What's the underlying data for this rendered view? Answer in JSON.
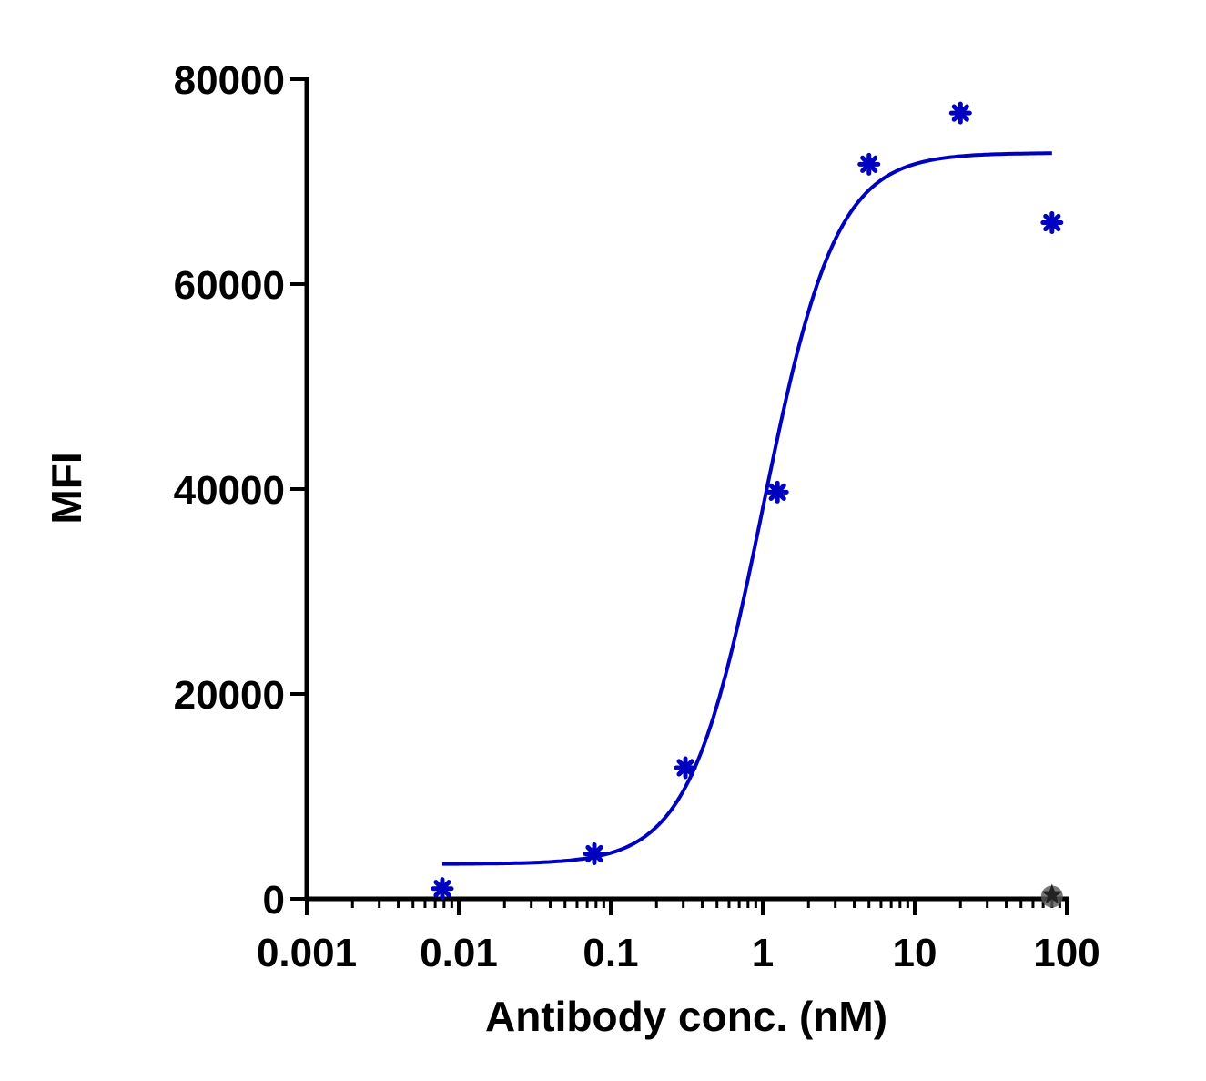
{
  "chart_data": {
    "type": "scatter",
    "title": "",
    "xlabel": "Antibody conc. (nM)",
    "ylabel": "MFI",
    "x_scale": "log",
    "xlim": [
      0.001,
      100
    ],
    "ylim": [
      0,
      80000
    ],
    "x_tick_labels": [
      "0.001",
      "0.01",
      "0.1",
      "1",
      "10",
      "100"
    ],
    "x_ticks": [
      0.001,
      0.01,
      0.1,
      1,
      10,
      100
    ],
    "y_tick_labels": [
      "0",
      "20000",
      "40000",
      "60000",
      "80000"
    ],
    "y_ticks": [
      0,
      20000,
      40000,
      60000,
      80000
    ],
    "grid": false,
    "legend": "none",
    "series": [
      {
        "marker": "asterisk",
        "color": "#0000c0",
        "x": [
          0.0078,
          0.078,
          0.31,
          1.25,
          5,
          20,
          80
        ],
        "y": [
          1000,
          4400,
          12800,
          39700,
          71700,
          76700,
          66000
        ]
      },
      {
        "marker": "star",
        "color": "#222222",
        "x": [
          80
        ],
        "y": [
          400
        ]
      }
    ],
    "fit_curve": {
      "model": "4PL",
      "color": "#0000c0",
      "bottom": 3400,
      "top": 72800,
      "ec50": 1.0,
      "hill": 1.8,
      "x_range": [
        0.0078,
        80
      ]
    }
  }
}
